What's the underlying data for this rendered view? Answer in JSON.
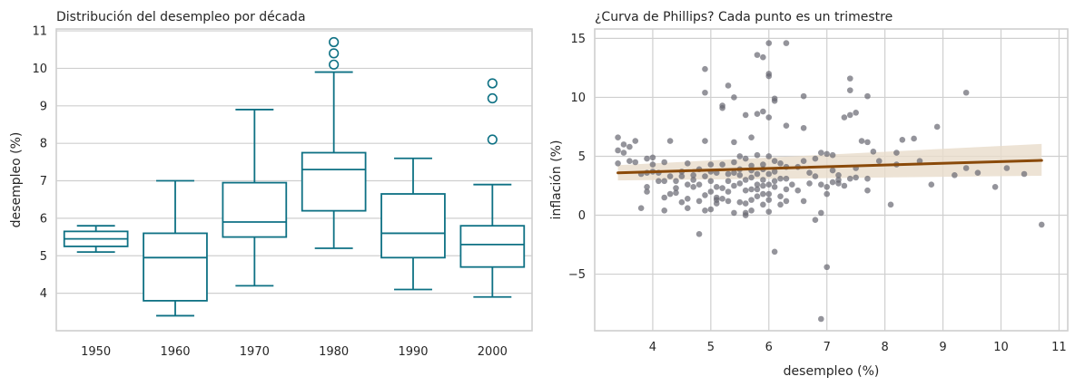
{
  "chart_data": [
    {
      "type": "box",
      "title": "Distribución del desempleo por década",
      "xlabel": "",
      "ylabel": "desempleo (%)",
      "ylim": [
        3.0,
        11.05
      ],
      "yticks": [
        4,
        5,
        6,
        7,
        8,
        9,
        10,
        11
      ],
      "color": "#0e7184",
      "grid": "horizontal",
      "boxes": [
        {
          "category": "1950",
          "whisker_low": 5.1,
          "q1": 5.25,
          "median": 5.45,
          "q3": 5.65,
          "whisker_high": 5.8,
          "outliers": []
        },
        {
          "category": "1960",
          "whisker_low": 3.4,
          "q1": 3.8,
          "median": 4.95,
          "q3": 5.6,
          "whisker_high": 7.0,
          "outliers": []
        },
        {
          "category": "1970",
          "whisker_low": 4.2,
          "q1": 5.5,
          "median": 5.9,
          "q3": 6.95,
          "whisker_high": 8.9,
          "outliers": []
        },
        {
          "category": "1980",
          "whisker_low": 5.2,
          "q1": 6.2,
          "median": 7.3,
          "q3": 7.75,
          "whisker_high": 9.9,
          "outliers": [
            10.1,
            10.4,
            10.7
          ]
        },
        {
          "category": "1990",
          "whisker_low": 4.1,
          "q1": 4.95,
          "median": 5.6,
          "q3": 6.65,
          "whisker_high": 7.6,
          "outliers": []
        },
        {
          "category": "2000",
          "whisker_low": 3.9,
          "q1": 4.7,
          "median": 5.3,
          "q3": 5.8,
          "whisker_high": 6.9,
          "outliers": [
            8.1,
            9.2,
            9.6
          ]
        }
      ]
    },
    {
      "type": "scatter",
      "title": "¿Curva de Phillips? Cada punto es un trimestre",
      "xlabel": "desempleo (%)",
      "ylabel": "inflación (%)",
      "xlim": [
        3.0,
        11.15
      ],
      "ylim": [
        -9.8,
        15.8
      ],
      "xticks": [
        4,
        5,
        6,
        7,
        8,
        9,
        10,
        11
      ],
      "yticks": [
        -5,
        0,
        5,
        10,
        15
      ],
      "point_color": "#666670",
      "grid": "both",
      "points": [
        [
          3.4,
          6.6
        ],
        [
          3.4,
          5.5
        ],
        [
          3.4,
          4.4
        ],
        [
          3.5,
          6.0
        ],
        [
          3.5,
          5.3
        ],
        [
          3.6,
          5.8
        ],
        [
          3.6,
          4.6
        ],
        [
          3.7,
          6.3
        ],
        [
          3.7,
          4.5
        ],
        [
          3.8,
          0.6
        ],
        [
          3.8,
          3.5
        ],
        [
          3.9,
          3.6
        ],
        [
          3.9,
          2.4
        ],
        [
          3.9,
          2.0
        ],
        [
          3.9,
          4.8
        ],
        [
          4.0,
          4.9
        ],
        [
          4.0,
          4.3
        ],
        [
          4.0,
          3.7
        ],
        [
          4.1,
          2.9
        ],
        [
          4.1,
          3.6
        ],
        [
          4.2,
          2.9
        ],
        [
          4.2,
          1.5
        ],
        [
          4.2,
          0.4
        ],
        [
          4.2,
          4.5
        ],
        [
          4.3,
          6.3
        ],
        [
          4.3,
          3.3
        ],
        [
          4.3,
          1.8
        ],
        [
          4.4,
          2.3
        ],
        [
          4.4,
          2.9
        ],
        [
          4.4,
          1.9
        ],
        [
          4.5,
          3.7
        ],
        [
          4.5,
          1.1
        ],
        [
          4.5,
          3.3
        ],
        [
          4.6,
          2.6
        ],
        [
          4.6,
          1.4
        ],
        [
          4.6,
          0.6
        ],
        [
          4.6,
          4.4
        ],
        [
          4.7,
          3.4
        ],
        [
          4.7,
          2.4
        ],
        [
          4.7,
          3.0
        ],
        [
          4.8,
          -1.6
        ],
        [
          4.8,
          1.2
        ],
        [
          4.8,
          3.9
        ],
        [
          4.8,
          2.6
        ],
        [
          4.9,
          12.4
        ],
        [
          4.9,
          10.4
        ],
        [
          4.9,
          6.3
        ],
        [
          4.9,
          0.4
        ],
        [
          4.9,
          3.3
        ],
        [
          4.9,
          1.7
        ],
        [
          5.0,
          4.3
        ],
        [
          5.0,
          2.9
        ],
        [
          5.0,
          3.7
        ],
        [
          5.0,
          2.0
        ],
        [
          5.0,
          0.5
        ],
        [
          5.1,
          3.6
        ],
        [
          5.1,
          2.4
        ],
        [
          5.1,
          1.5
        ],
        [
          5.1,
          1.0
        ],
        [
          5.1,
          1.3
        ],
        [
          5.2,
          9.1
        ],
        [
          5.2,
          9.3
        ],
        [
          5.2,
          4.3
        ],
        [
          5.2,
          2.3
        ],
        [
          5.2,
          1.4
        ],
        [
          5.3,
          11.0
        ],
        [
          5.3,
          2.0
        ],
        [
          5.3,
          1.2
        ],
        [
          5.3,
          3.5
        ],
        [
          5.3,
          2.9
        ],
        [
          5.4,
          10.0
        ],
        [
          5.4,
          6.2
        ],
        [
          5.4,
          4.5
        ],
        [
          5.4,
          2.5
        ],
        [
          5.4,
          3.6
        ],
        [
          5.4,
          0.2
        ],
        [
          5.5,
          5.0
        ],
        [
          5.5,
          3.9
        ],
        [
          5.5,
          3.4
        ],
        [
          5.5,
          1.1
        ],
        [
          5.5,
          2.7
        ],
        [
          5.6,
          8.5
        ],
        [
          5.6,
          4.8
        ],
        [
          5.6,
          3.0
        ],
        [
          5.6,
          2.1
        ],
        [
          5.6,
          1.0
        ],
        [
          5.6,
          0.2
        ],
        [
          5.6,
          0.0
        ],
        [
          5.7,
          6.6
        ],
        [
          5.7,
          4.2
        ],
        [
          5.7,
          3.2
        ],
        [
          5.7,
          2.2
        ],
        [
          5.7,
          1.3
        ],
        [
          5.7,
          0.4
        ],
        [
          5.7,
          3.8
        ],
        [
          5.8,
          13.6
        ],
        [
          5.8,
          8.6
        ],
        [
          5.8,
          5.1
        ],
        [
          5.8,
          3.5
        ],
        [
          5.8,
          2.6
        ],
        [
          5.8,
          2.2
        ],
        [
          5.8,
          1.6
        ],
        [
          5.9,
          13.4
        ],
        [
          5.9,
          8.8
        ],
        [
          5.9,
          4.3
        ],
        [
          5.9,
          3.9
        ],
        [
          5.9,
          3.0
        ],
        [
          5.9,
          2.5
        ],
        [
          5.9,
          1.8
        ],
        [
          5.9,
          0.9
        ],
        [
          6.0,
          14.6
        ],
        [
          6.0,
          12.0
        ],
        [
          6.0,
          11.8
        ],
        [
          6.0,
          8.3
        ],
        [
          6.0,
          5.0
        ],
        [
          6.0,
          3.5
        ],
        [
          6.0,
          2.6
        ],
        [
          6.0,
          1.8
        ],
        [
          6.0,
          1.3
        ],
        [
          6.0,
          0.3
        ],
        [
          6.1,
          9.9
        ],
        [
          6.1,
          9.7
        ],
        [
          6.1,
          4.6
        ],
        [
          6.1,
          3.7
        ],
        [
          6.1,
          2.9
        ],
        [
          6.1,
          2.4
        ],
        [
          6.1,
          -3.1
        ],
        [
          6.2,
          4.4
        ],
        [
          6.2,
          3.1
        ],
        [
          6.2,
          1.6
        ],
        [
          6.2,
          0.9
        ],
        [
          6.3,
          14.6
        ],
        [
          6.3,
          7.6
        ],
        [
          6.3,
          4.1
        ],
        [
          6.3,
          3.1
        ],
        [
          6.3,
          2.2
        ],
        [
          6.3,
          1.2
        ],
        [
          6.4,
          2.6
        ],
        [
          6.5,
          4.1
        ],
        [
          6.5,
          2.1
        ],
        [
          6.6,
          10.1
        ],
        [
          6.6,
          7.4
        ],
        [
          6.6,
          4.6
        ],
        [
          6.6,
          1.2
        ],
        [
          6.7,
          3.6
        ],
        [
          6.7,
          2.7
        ],
        [
          6.8,
          -0.4
        ],
        [
          6.8,
          4.8
        ],
        [
          6.8,
          3.3
        ],
        [
          6.9,
          2.6
        ],
        [
          6.9,
          5.3
        ],
        [
          6.9,
          0.2
        ],
        [
          6.9,
          -8.8
        ],
        [
          7.0,
          -4.4
        ],
        [
          7.0,
          2.4
        ],
        [
          7.0,
          5.2
        ],
        [
          7.0,
          1.8
        ],
        [
          7.1,
          5.1
        ],
        [
          7.1,
          3.8
        ],
        [
          7.1,
          2.8
        ],
        [
          7.2,
          3.0
        ],
        [
          7.2,
          2.7
        ],
        [
          7.2,
          3.4
        ],
        [
          7.3,
          8.3
        ],
        [
          7.3,
          2.5
        ],
        [
          7.4,
          11.6
        ],
        [
          7.4,
          10.6
        ],
        [
          7.4,
          8.5
        ],
        [
          7.4,
          3.1
        ],
        [
          7.5,
          8.7
        ],
        [
          7.5,
          4.0
        ],
        [
          7.5,
          3.2
        ],
        [
          7.6,
          6.3
        ],
        [
          7.7,
          6.2
        ],
        [
          7.7,
          10.1
        ],
        [
          7.7,
          3.1
        ],
        [
          7.7,
          2.1
        ],
        [
          7.8,
          5.4
        ],
        [
          7.9,
          4.6
        ],
        [
          8.1,
          0.9
        ],
        [
          8.2,
          5.3
        ],
        [
          8.2,
          4.3
        ],
        [
          8.3,
          6.4
        ],
        [
          8.5,
          6.5
        ],
        [
          8.6,
          4.6
        ],
        [
          8.8,
          2.6
        ],
        [
          8.9,
          7.5
        ],
        [
          9.2,
          3.4
        ],
        [
          9.4,
          10.4
        ],
        [
          9.4,
          4.0
        ],
        [
          9.6,
          3.6
        ],
        [
          9.9,
          2.4
        ],
        [
          10.1,
          4.0
        ],
        [
          10.4,
          3.5
        ],
        [
          10.7,
          -0.8
        ]
      ],
      "regression": {
        "x": [
          3.4,
          10.7
        ],
        "y": [
          3.6,
          4.65
        ],
        "line_color": "#8a4a0a",
        "band_color": "#e8dccb",
        "ci_low": [
          2.95,
          3.35
        ],
        "ci_high": [
          4.25,
          6.05
        ]
      }
    }
  ]
}
